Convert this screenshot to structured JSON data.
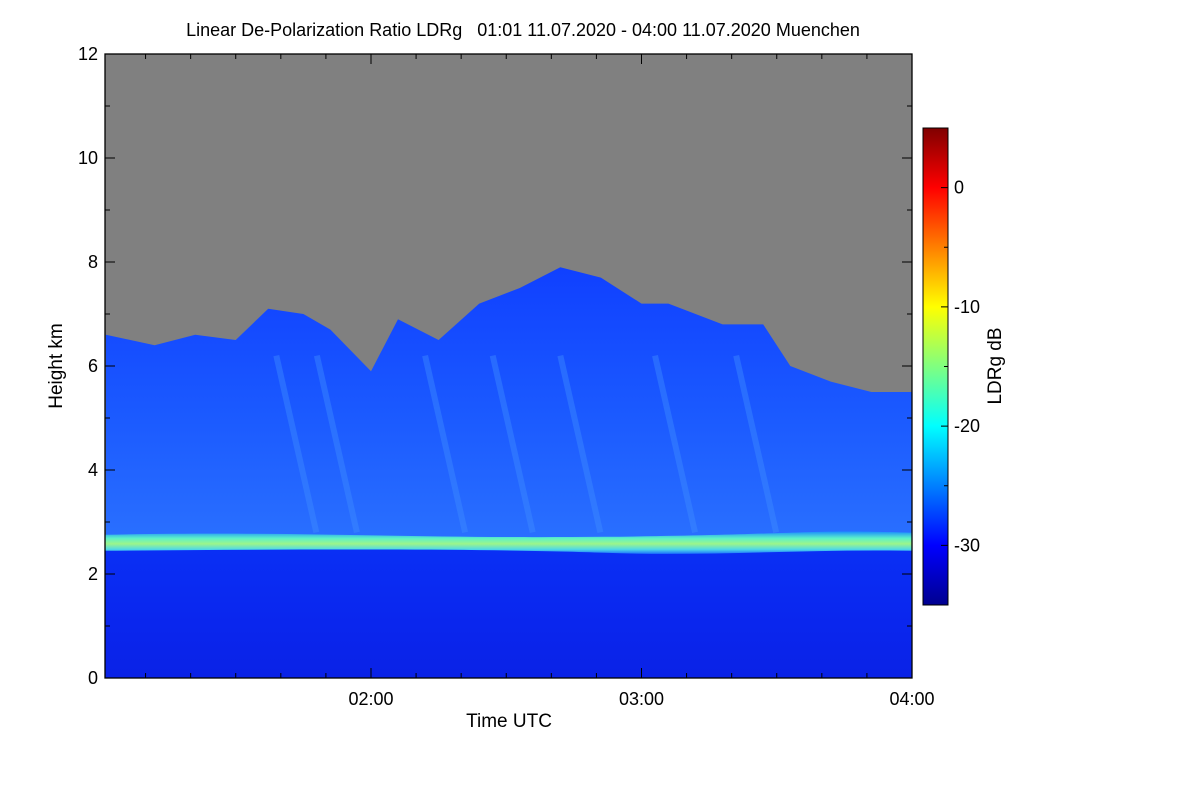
{
  "chart_data": {
    "type": "heatmap",
    "title": "Linear De-Polarization Ratio LDRg   01:01 11.07.2020 - 04:00 11.07.2020 Muenchen",
    "xlabel": "Time UTC",
    "ylabel": "Height km",
    "x_range_hours": [
      1.0167,
      4.0
    ],
    "x_ticks": [
      {
        "value": 2.0,
        "label": "02:00"
      },
      {
        "value": 3.0,
        "label": "03:00"
      },
      {
        "value": 4.0,
        "label": "04:00"
      }
    ],
    "y_range_km": [
      0,
      12
    ],
    "y_ticks": [
      0,
      2,
      4,
      6,
      8,
      10,
      12
    ],
    "colorbar": {
      "label": "LDRg dB",
      "range_db": [
        -35,
        5
      ],
      "ticks": [
        -30,
        -20,
        -10,
        0
      ],
      "colormap": "jet"
    },
    "no_data_color": "#808080",
    "features": {
      "melting_layer_km": 2.6,
      "melting_layer_ldr_db": -17,
      "rain_below_ldr_db": -30,
      "ice_cloud_ldr_db": -27,
      "cloud_top_profile": [
        {
          "t": 1.02,
          "top_km": 6.6
        },
        {
          "t": 1.2,
          "top_km": 6.4
        },
        {
          "t": 1.35,
          "top_km": 6.6
        },
        {
          "t": 1.5,
          "top_km": 6.5
        },
        {
          "t": 1.62,
          "top_km": 7.1
        },
        {
          "t": 1.75,
          "top_km": 7.0
        },
        {
          "t": 1.85,
          "top_km": 6.7
        },
        {
          "t": 2.0,
          "top_km": 5.9
        },
        {
          "t": 2.1,
          "top_km": 6.9
        },
        {
          "t": 2.25,
          "top_km": 6.5
        },
        {
          "t": 2.4,
          "top_km": 7.2
        },
        {
          "t": 2.55,
          "top_km": 7.5
        },
        {
          "t": 2.7,
          "top_km": 7.9
        },
        {
          "t": 2.85,
          "top_km": 7.7
        },
        {
          "t": 3.0,
          "top_km": 7.2
        },
        {
          "t": 3.1,
          "top_km": 7.2
        },
        {
          "t": 3.3,
          "top_km": 6.8
        },
        {
          "t": 3.45,
          "top_km": 6.8
        },
        {
          "t": 3.55,
          "top_km": 6.0
        },
        {
          "t": 3.7,
          "top_km": 5.7
        },
        {
          "t": 3.85,
          "top_km": 5.5
        },
        {
          "t": 4.0,
          "top_km": 5.5
        }
      ]
    }
  }
}
